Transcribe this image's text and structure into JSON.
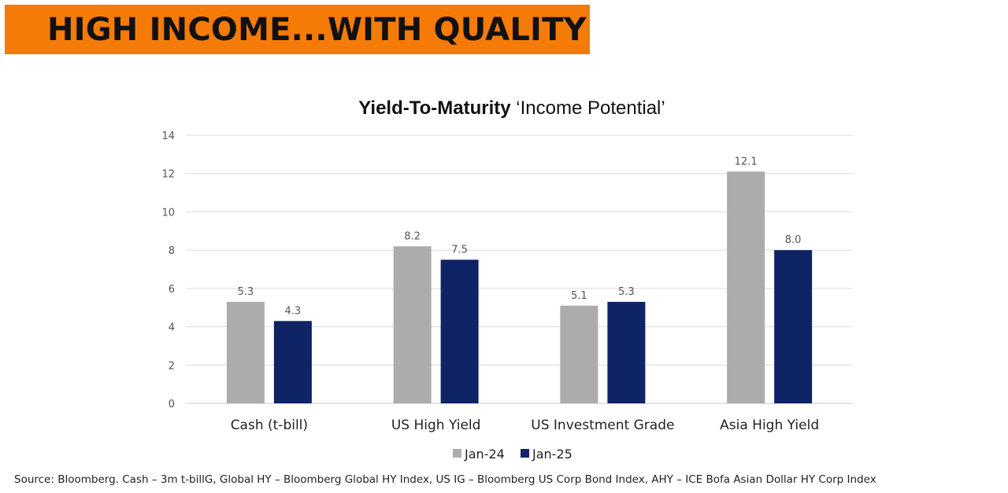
{
  "banner": {
    "title": "HIGH INCOME...WITH QUALITY"
  },
  "chart_data": {
    "type": "bar",
    "title_bold": "Yield-To-Maturity",
    "title_rest": " ‘Income Potential’",
    "categories": [
      "Cash (t-bill)",
      "US High Yield",
      "US Investment Grade",
      "Asia High Yield"
    ],
    "series": [
      {
        "name": "Jan-24",
        "color": "#aeabab",
        "values": [
          5.3,
          8.2,
          5.1,
          12.1
        ]
      },
      {
        "name": "Jan-25",
        "color": "#0e2466",
        "values": [
          4.3,
          7.5,
          5.3,
          8.0
        ]
      }
    ],
    "ylim": [
      0,
      14
    ],
    "yticks": [
      0,
      2,
      4,
      6,
      8,
      10,
      12,
      14
    ],
    "grid": true,
    "legend": "bottom",
    "data_labels": true
  },
  "source_note": "Source: Bloomberg. Cash – 3m t-billG, Global HY – Bloomberg Global HY Index, US IG – Bloomberg US Corp Bond Index, AHY – ICE Bofa Asian Dollar HY Corp Index"
}
